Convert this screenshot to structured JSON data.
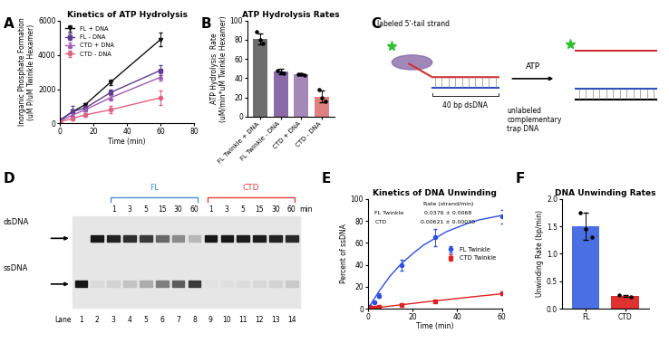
{
  "chart_data": [
    {
      "panel": "A",
      "type": "line",
      "title": "Kinetics of ATP Hydrolysis",
      "x_label": "Time (min)",
      "y_label": "Inorganic Phosphate Formation\n(uM P/uM Twinkle Hexamer)",
      "xlim": [
        0,
        80
      ],
      "xticks": [
        0,
        20,
        40,
        60,
        80
      ],
      "ylim": [
        0,
        6000
      ],
      "yticks": [
        0,
        2000,
        4000,
        6000
      ],
      "legend": "upper left",
      "series": [
        {
          "name": "FL + DNA",
          "color": "#111111",
          "marker": "triangle_down",
          "x": [
            0,
            7.5,
            15,
            30,
            60
          ],
          "values": [
            200,
            700,
            1100,
            2400,
            4900
          ],
          "errors": [
            80,
            100,
            100,
            150,
            400
          ]
        },
        {
          "name": "FL - DNA",
          "color": "#5b3d8f",
          "marker": "square",
          "x": [
            0,
            7.5,
            15,
            30,
            60
          ],
          "values": [
            200,
            700,
            900,
            1800,
            3100
          ],
          "errors": [
            80,
            300,
            100,
            150,
            300
          ]
        },
        {
          "name": "CTD + DNA",
          "color": "#a05ab0",
          "marker": "triangle",
          "x": [
            0,
            7.5,
            15,
            30,
            60
          ],
          "values": [
            150,
            500,
            800,
            1500,
            2700
          ],
          "errors": [
            60,
            100,
            100,
            150,
            200
          ]
        },
        {
          "name": "CTD - DNA",
          "color": "#e06080",
          "marker": "circle",
          "x": [
            0,
            7.5,
            15,
            30,
            60
          ],
          "values": [
            100,
            300,
            500,
            800,
            1500
          ],
          "errors": [
            50,
            100,
            100,
            200,
            400
          ]
        }
      ]
    },
    {
      "panel": "B",
      "type": "bar",
      "title": "ATP Hydrolysis Rates",
      "y_label": "ATP Hydrolysis  Rate\n(uM/min*uM Twinkle Hexamer)",
      "categories": [
        "FL Twinkle + DNA",
        "FL Twinkle - DNA",
        "CTD + DNA",
        "CTD - DNA"
      ],
      "values": [
        81,
        47,
        44,
        21
      ],
      "errors": [
        6,
        3,
        1,
        6
      ],
      "points": [
        [
          88,
          80,
          76
        ],
        [
          48,
          46,
          45
        ],
        [
          44,
          44,
          43
        ],
        [
          28,
          20,
          16
        ]
      ],
      "colors": [
        "#6e6e6e",
        "#8a6aa8",
        "#a489b8",
        "#e08080"
      ],
      "ylim": [
        0,
        100
      ],
      "yticks": [
        0,
        20,
        40,
        60,
        80,
        100
      ]
    },
    {
      "panel": "E",
      "type": "line",
      "title": "Kinetics of DNA Unwinding",
      "x_label": "Time (min)",
      "y_label": "Percent of ssDNA",
      "xlim": [
        0,
        60
      ],
      "xticks": [
        0,
        20,
        40,
        60
      ],
      "ylim": [
        0,
        100
      ],
      "yticks": [
        0,
        20,
        40,
        60,
        80,
        100
      ],
      "legend": "center right",
      "table": {
        "header": "Rate (strand/min)",
        "rows": [
          [
            "FL Twinkle",
            "0.0376 ± 0.0068"
          ],
          [
            "CTD",
            "0.00621 ± 0.00030"
          ]
        ]
      },
      "series": [
        {
          "name": "FL Twinkle",
          "color": "#2f4fe0",
          "marker": "circle",
          "x": [
            1,
            3,
            5,
            15,
            30,
            60
          ],
          "values": [
            2,
            6,
            12,
            40,
            65,
            84
          ],
          "errors": [
            1,
            1,
            2,
            5,
            8,
            6
          ],
          "fit": {
            "x": [
              0,
              5,
              10,
              15,
              20,
              25,
              30,
              35,
              40,
              45,
              50,
              55,
              60
            ],
            "values": [
              0,
              16,
              30,
              41,
              50,
              58,
              64,
              70,
              74,
              78,
              81,
              83,
              85
            ]
          }
        },
        {
          "name": "CTD Twinkle",
          "color": "#e02020",
          "marker": "square",
          "x": [
            1,
            3,
            5,
            15,
            30,
            60
          ],
          "values": [
            0.5,
            1,
            1.5,
            3,
            7,
            14
          ],
          "errors": [
            0.2,
            0.3,
            0.3,
            0.5,
            0.5,
            0.8
          ],
          "fit": {
            "x": [
              0,
              5,
              10,
              15,
              20,
              25,
              30,
              35,
              40,
              45,
              50,
              55,
              60
            ],
            "values": [
              0,
              1.2,
              2.4,
              3.6,
              4.8,
              6,
              7.1,
              8.2,
              9.3,
              10.4,
              11.5,
              12.5,
              13.6
            ]
          }
        }
      ]
    },
    {
      "panel": "F",
      "type": "bar",
      "title": "DNA Unwinding Rates",
      "y_label": "Unwinding Rate (bp/min)",
      "categories": [
        "FL",
        "CTD"
      ],
      "values": [
        1.5,
        0.23
      ],
      "errors": [
        0.25,
        0.02
      ],
      "points": [
        [
          1.75,
          1.45,
          1.3
        ],
        [
          0.25,
          0.22
        ]
      ],
      "colors": [
        "#4a6fe3",
        "#e03030"
      ],
      "ylim": [
        0,
        2
      ],
      "yticks": [
        {
          "value": 0,
          "label": "0.0"
        },
        0.5,
        {
          "value": 1,
          "label": "1.0"
        },
        1.5,
        {
          "value": 2,
          "label": "2.0"
        }
      ]
    }
  ],
  "diagram": {
    "panel": "C",
    "labels": {
      "tail": "labeled 5'-tail strand",
      "duplex": "40 bp dsDNA",
      "arrow": "ATP",
      "trap": "unlabeled\ncomplementary\ntrap DNA"
    }
  },
  "gel": {
    "panel": "D",
    "lane_label": "Lane",
    "lanes": [
      1,
      2,
      3,
      4,
      5,
      6,
      7,
      8,
      9,
      10,
      11,
      12,
      13,
      14
    ],
    "bands": [
      {
        "label": "dsDNA",
        "band_intensity": [
          0,
          0.9,
          0.85,
          0.8,
          0.75,
          0.55,
          0.4,
          0.2,
          0.9,
          0.9,
          0.88,
          0.88,
          0.85,
          0.82
        ]
      },
      {
        "label": "ssDNA",
        "band_intensity": [
          0.9,
          0.05,
          0.08,
          0.15,
          0.25,
          0.45,
          0.6,
          0.75,
          0.02,
          0.03,
          0.04,
          0.06,
          0.08,
          0.12
        ]
      }
    ],
    "groups": [
      {
        "label": "FL",
        "color": "#4a90d0",
        "lanes": [
          3,
          4,
          5,
          6,
          7,
          8
        ],
        "times": [
          "1",
          "3",
          "5",
          "15",
          "30",
          "60"
        ]
      },
      {
        "label": "CTD",
        "color": "#e04040",
        "lanes": [
          9,
          10,
          11,
          12,
          13,
          14
        ],
        "times": [
          "1",
          "3",
          "5",
          "15",
          "30",
          "60"
        ]
      }
    ],
    "time_unit": "min"
  }
}
